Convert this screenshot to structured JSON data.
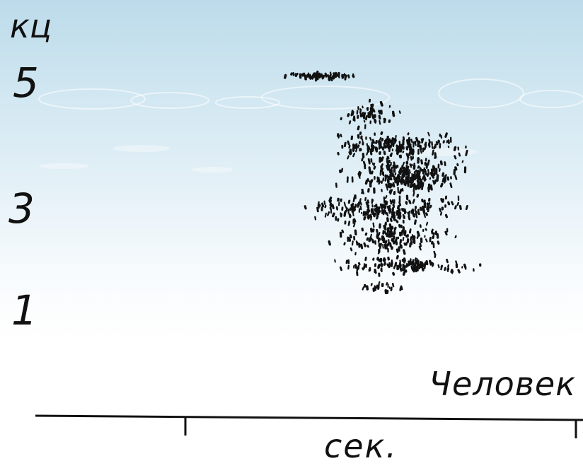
{
  "chart_data": {
    "type": "scatter",
    "title": "",
    "series_label": "Человек",
    "ylabel": "кц",
    "xlabel": "сек.",
    "y_ticks": [
      "5",
      "3",
      "1"
    ],
    "ylim": [
      0.5,
      5.8
    ],
    "x_ticks": 2,
    "grid": false,
    "legend": "none",
    "description_of_shape": "dense cloud of dots concentrated between about 1.5 and 5 kHz",
    "color": "#111111"
  }
}
